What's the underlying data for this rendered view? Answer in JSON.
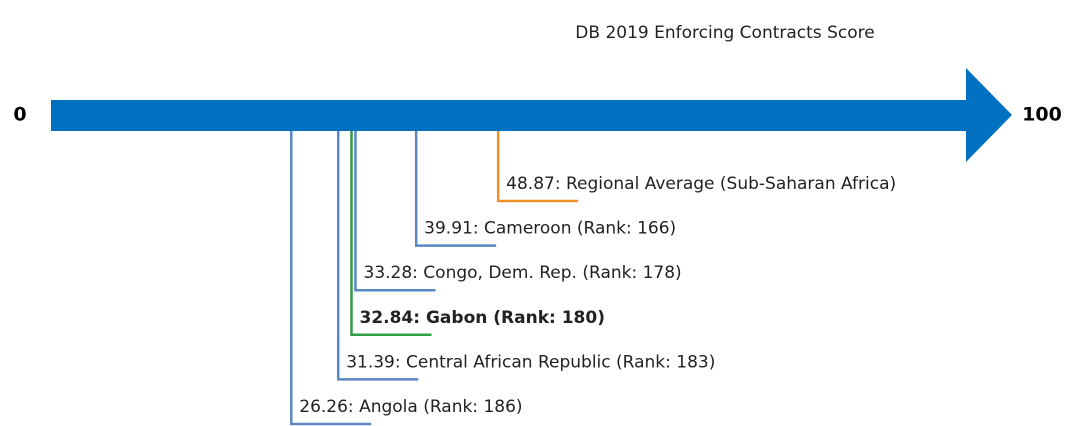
{
  "chart_data": {
    "type": "number-line",
    "title": "DB 2019 Enforcing Contracts Score",
    "xlim": [
      0,
      100
    ],
    "bar_color": "#0070c0",
    "values": [
      48.87,
      39.91,
      33.28,
      32.84,
      31.39,
      26.26
    ],
    "value_labels": [
      "48.87: Regional Average (Sub-Saharan Africa)",
      "39.91: Cameroon (Rank: 166)",
      "33.28: Congo, Dem. Rep. (Rank: 178)",
      "32.84: Gabon (Rank: 180)",
      "31.39: Central African Republic (Rank: 183)",
      "26.26: Angola (Rank: 186)"
    ],
    "colors": [
      "#f0912c",
      "#5b87c2",
      "#5b87c2",
      "#2e9e44",
      "#5b87c2",
      "#5b87c2"
    ],
    "bold": [
      false,
      false,
      false,
      true,
      false,
      false
    ]
  }
}
